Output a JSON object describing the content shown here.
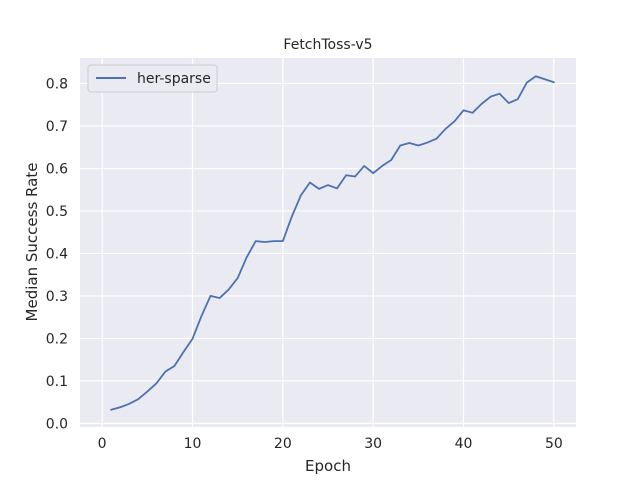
{
  "chart_data": {
    "type": "line",
    "title": "FetchToss-v5",
    "xlabel": "Epoch",
    "ylabel": "Median Success Rate",
    "xlim": [
      -2.45,
      52.45
    ],
    "ylim": [
      -0.0085,
      0.86
    ],
    "xticks": [
      0,
      10,
      20,
      30,
      40,
      50
    ],
    "yticks": [
      0.0,
      0.1,
      0.2,
      0.3,
      0.4,
      0.5,
      0.6,
      0.7,
      0.8
    ],
    "xtick_labels": [
      "0",
      "10",
      "20",
      "30",
      "40",
      "50"
    ],
    "ytick_labels": [
      "0.0",
      "0.1",
      "0.2",
      "0.3",
      "0.4",
      "0.5",
      "0.6",
      "0.7",
      "0.8"
    ],
    "grid": true,
    "legend_position": "top-left",
    "colors": {
      "background": "#EAEAF2",
      "grid": "#FFFFFF",
      "series": "#4C72B0"
    },
    "series": [
      {
        "name": "her-sparse",
        "x": [
          1,
          2,
          3,
          4,
          5,
          6,
          7,
          8,
          9,
          10,
          11,
          12,
          13,
          14,
          15,
          16,
          17,
          18,
          19,
          20,
          21,
          22,
          23,
          24,
          25,
          26,
          27,
          28,
          29,
          30,
          31,
          32,
          33,
          34,
          35,
          36,
          37,
          38,
          39,
          40,
          41,
          42,
          43,
          44,
          45,
          46,
          47,
          48,
          49,
          50
        ],
        "y": [
          0.032,
          0.038,
          0.046,
          0.057,
          0.075,
          0.094,
          0.122,
          0.135,
          0.168,
          0.199,
          0.253,
          0.3,
          0.295,
          0.315,
          0.342,
          0.391,
          0.429,
          0.427,
          0.429,
          0.429,
          0.487,
          0.537,
          0.567,
          0.552,
          0.561,
          0.553,
          0.584,
          0.581,
          0.606,
          0.589,
          0.606,
          0.62,
          0.654,
          0.66,
          0.654,
          0.661,
          0.67,
          0.693,
          0.711,
          0.737,
          0.731,
          0.752,
          0.769,
          0.776,
          0.754,
          0.763,
          0.802,
          0.817,
          0.81,
          0.803
        ]
      }
    ]
  }
}
